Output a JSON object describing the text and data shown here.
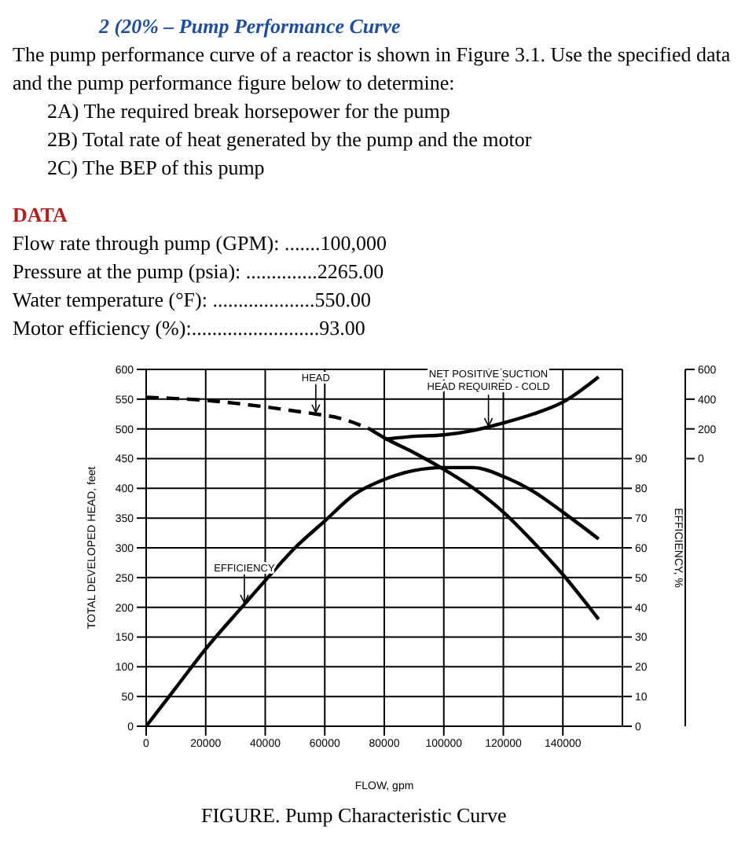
{
  "chart_data": {
    "type": "line",
    "title": "2 (20% – Pump Performance Curve",
    "annotations": [
      "The pump performance curve of a reactor is shown in Figure 3.1.  Use the specified data and the pump performance figure below to determine:",
      "2A) The required break horsepower for the pump",
      "2B) Total rate of heat generated by the pump and the motor",
      "2C) The BEP of this pump",
      "DATA",
      "Flow rate through pump (GPM): .......100,000",
      "Pressure at the pump (psia): ..............2265.00",
      "Water temperature (°F): ....................550.00",
      "Motor efficiency (%):.........................93.00",
      {
        "text": "HEAD",
        "x": 57000,
        "y": 525
      },
      {
        "text": "EFFICIENCY",
        "x": 33000,
        "y": 205
      },
      {
        "text": "NET POSITIVE SUCTION HEAD REQUIRED - COLD",
        "x": 115000,
        "y": 502
      },
      "FIGURE. Pump Characteristic Curve"
    ],
    "xlabel": "FLOW, gpm",
    "ylabel": "TOTAL DEVELOPED HEAD, feet",
    "y2label": "EFFICIENCY, %",
    "xlim": [
      0,
      160000
    ],
    "xticks": [
      0,
      20000,
      40000,
      60000,
      80000,
      100000,
      120000,
      140000
    ],
    "ylim": [
      0,
      600
    ],
    "yticks": [
      0,
      50,
      100,
      150,
      200,
      250,
      300,
      350,
      400,
      450,
      500,
      550,
      600
    ],
    "y2lim": [
      0,
      120
    ],
    "y2ticks": [
      0,
      10,
      20,
      30,
      40,
      50,
      60,
      70,
      80,
      90
    ],
    "y3lim": [
      -1800,
      600
    ],
    "y3ticks": [
      0,
      200,
      400,
      600
    ],
    "grid": true,
    "legend": false,
    "marker": "none",
    "series": [
      {
        "color": "#000000",
        "line_style": "dashed",
        "x": [
          0,
          10000,
          20000,
          30000,
          40000,
          50000,
          57000,
          65000,
          75000
        ],
        "values": [
          553,
          551,
          548,
          543,
          537,
          530,
          525,
          518,
          500
        ]
      },
      {
        "color": "#000000",
        "line_style": "solid",
        "x": [
          75000,
          80000,
          90000,
          100000,
          110000,
          120000,
          130000,
          140000,
          152000
        ],
        "values": [
          500,
          485,
          460,
          432,
          400,
          360,
          310,
          255,
          180
        ]
      },
      {
        "color": "#000000",
        "line_style": "solid",
        "axis": "y2",
        "x": [
          0,
          10000,
          20000,
          33000,
          40000,
          50000,
          60000,
          70000,
          80000,
          90000,
          100000,
          110000,
          120000,
          130000,
          140000,
          152000
        ],
        "values": [
          0,
          13,
          26,
          41,
          49,
          60,
          69,
          78,
          83,
          86,
          87,
          87,
          84,
          79,
          72,
          63
        ]
      },
      {
        "color": "#000000",
        "line_style": "solid",
        "axis": "y3",
        "x": [
          80000,
          90000,
          100000,
          110000,
          120000,
          130000,
          140000,
          152000
        ],
        "values": [
          130,
          150,
          160,
          190,
          240,
          300,
          380,
          550
        ]
      }
    ]
  }
}
